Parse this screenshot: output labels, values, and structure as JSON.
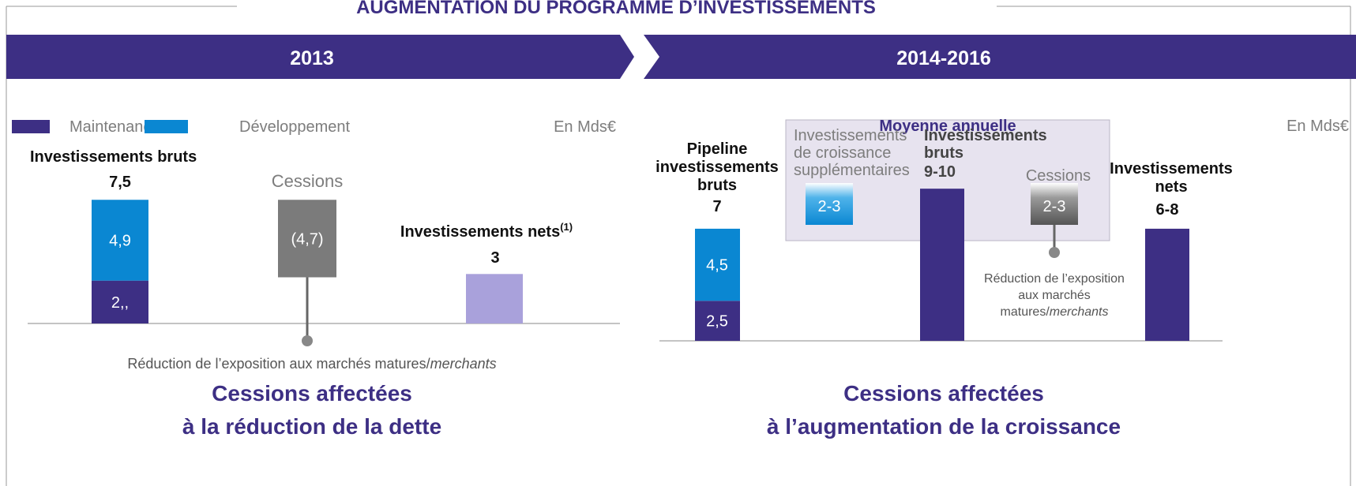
{
  "title": "AUGMENTATION DU PROGRAMME D’INVESTISSEMENTS",
  "left": {
    "header": "2013",
    "legend": [
      {
        "name": "Maintenance",
        "color": "#3d2f84"
      },
      {
        "name": "Développement",
        "color": "#0a87d2"
      }
    ],
    "unit": "En Mds€",
    "gross": {
      "label": "Investissements bruts",
      "total": 7.5,
      "total_label": "7,5",
      "segments": [
        {
          "value": 2.6,
          "value_label": "2,,",
          "color": "#3d2f84"
        },
        {
          "value": 4.9,
          "value_label": "4,9",
          "color": "#0a87d2"
        }
      ]
    },
    "disposals": {
      "label": "Cessions",
      "value": -4.7,
      "value_label": "(4,7)",
      "color": "#7b7b7b"
    },
    "net": {
      "label": "Investissements nets",
      "note": "(1)",
      "value": 3,
      "value_label": "3",
      "color": "#a9a1db"
    },
    "annotation": {
      "text": "Réduction de l’exposition aux marchés matures/",
      "italic": "merchants"
    },
    "footer": [
      "Cessions affectées",
      "à la réduction de la dette"
    ]
  },
  "right": {
    "header": "2014-2016",
    "box_title": "Moyenne annuelle",
    "unit": "En Mds€",
    "pipeline": {
      "label": [
        "Pipeline",
        "investissements",
        "bruts"
      ],
      "total": 7,
      "total_label": "7",
      "segments": [
        {
          "value": 2.5,
          "value_label": "2,5",
          "color": "#3d2f84"
        },
        {
          "value": 4.5,
          "value_label": "4,5",
          "color": "#0a87d2"
        }
      ]
    },
    "growth": {
      "label": [
        "Investissements",
        "de croissance",
        "supplémentaires"
      ],
      "value_label": "2-3"
    },
    "gross": {
      "label": [
        "Investissements",
        "bruts"
      ],
      "range": [
        9,
        10
      ],
      "value_label": "9-10",
      "color": "#3d2f84"
    },
    "disposals": {
      "label": "Cessions",
      "value_label": "2-3"
    },
    "annotation": {
      "lines": [
        "Réduction de l’exposition",
        "aux marchés",
        "matures/"
      ],
      "italic": "merchants"
    },
    "net": {
      "label": [
        "Investissements",
        "nets"
      ],
      "range": [
        6,
        8
      ],
      "value_label": "6-8",
      "color": "#3d2f84"
    },
    "footer": [
      "Cessions affectées",
      "à l’augmentation de la croissance"
    ]
  }
}
